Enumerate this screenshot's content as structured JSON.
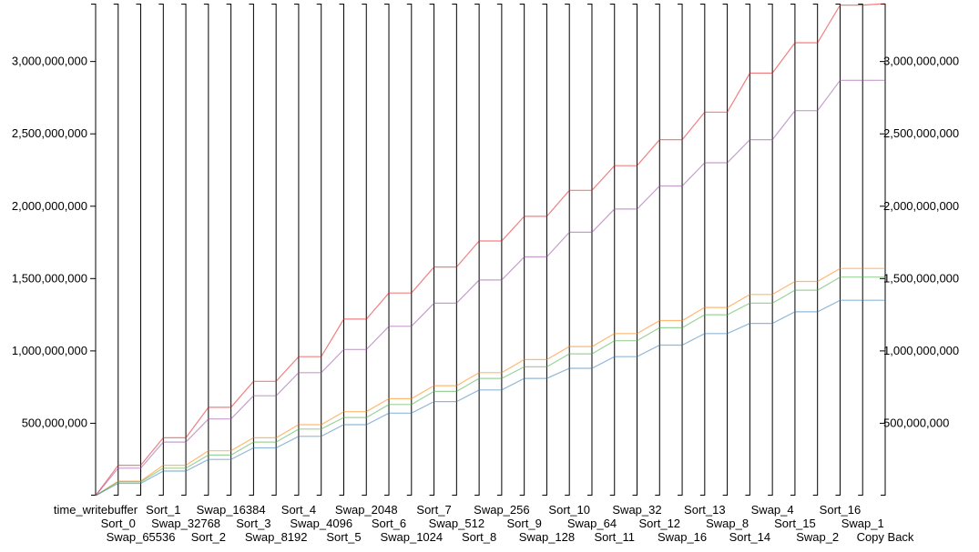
{
  "chart_data": {
    "type": "line",
    "chart_style": "parallel-coordinates",
    "title": "",
    "xlabel": "",
    "ylabel": "",
    "grid": false,
    "legend": "none",
    "ylim": [
      0,
      3400000000
    ],
    "yticks": [
      500000000,
      1000000000,
      1500000000,
      2000000000,
      2500000000,
      3000000000
    ],
    "ytick_labels": [
      "500,000,000",
      "1,000,000,000",
      "1,500,000,000",
      "2,000,000,000",
      "2,500,000,000",
      "3,000,000,000"
    ],
    "categories": [
      "time_writebuffer",
      "Sort_0",
      "Swap_65536",
      "Sort_1",
      "Swap_32768",
      "Sort_2",
      "Swap_16384",
      "Sort_3",
      "Swap_8192",
      "Sort_4",
      "Swap_4096",
      "Sort_5",
      "Swap_2048",
      "Sort_6",
      "Swap_1024",
      "Sort_7",
      "Swap_512",
      "Sort_8",
      "Swap_256",
      "Sort_9",
      "Swap_128",
      "Sort_10",
      "Swap_64",
      "Sort_11",
      "Swap_32",
      "Sort_12",
      "Swap_16",
      "Sort_13",
      "Swap_8",
      "Sort_14",
      "Swap_4",
      "Sort_15",
      "Swap_2",
      "Sort_16",
      "Swap_1",
      "Copy Back"
    ],
    "series": [
      {
        "color": "#e41a1c",
        "values": [
          0,
          210000000,
          210000000,
          400000000,
          400000000,
          610000000,
          610000000,
          790000000,
          790000000,
          960000000,
          960000000,
          1220000000,
          1220000000,
          1400000000,
          1400000000,
          1580000000,
          1580000000,
          1760000000,
          1760000000,
          1930000000,
          1930000000,
          2110000000,
          2110000000,
          2280000000,
          2280000000,
          2460000000,
          2460000000,
          2650000000,
          2650000000,
          2920000000,
          2920000000,
          3130000000,
          3130000000,
          3390000000,
          3390000000,
          3400000000
        ]
      },
      {
        "color": "#984ea3",
        "values": [
          0,
          190000000,
          190000000,
          370000000,
          370000000,
          530000000,
          530000000,
          690000000,
          690000000,
          850000000,
          850000000,
          1010000000,
          1010000000,
          1170000000,
          1170000000,
          1330000000,
          1330000000,
          1490000000,
          1490000000,
          1650000000,
          1650000000,
          1820000000,
          1820000000,
          1980000000,
          1980000000,
          2140000000,
          2140000000,
          2300000000,
          2300000000,
          2460000000,
          2460000000,
          2660000000,
          2660000000,
          2870000000,
          2870000000,
          2870000000
        ]
      },
      {
        "color": "#ff7f00",
        "values": [
          0,
          100000000,
          100000000,
          210000000,
          210000000,
          310000000,
          310000000,
          400000000,
          400000000,
          490000000,
          490000000,
          580000000,
          580000000,
          670000000,
          670000000,
          760000000,
          760000000,
          850000000,
          850000000,
          940000000,
          940000000,
          1030000000,
          1030000000,
          1120000000,
          1120000000,
          1210000000,
          1210000000,
          1300000000,
          1300000000,
          1390000000,
          1390000000,
          1480000000,
          1480000000,
          1570000000,
          1570000000,
          1570000000
        ]
      },
      {
        "color": "#4daf4a",
        "values": [
          0,
          95000000,
          95000000,
          190000000,
          190000000,
          280000000,
          280000000,
          370000000,
          370000000,
          460000000,
          460000000,
          540000000,
          540000000,
          630000000,
          630000000,
          720000000,
          720000000,
          810000000,
          810000000,
          890000000,
          890000000,
          980000000,
          980000000,
          1070000000,
          1070000000,
          1160000000,
          1160000000,
          1250000000,
          1250000000,
          1330000000,
          1330000000,
          1420000000,
          1420000000,
          1510000000,
          1510000000,
          1510000000
        ]
      },
      {
        "color": "#377eb8",
        "values": [
          0,
          85000000,
          85000000,
          170000000,
          170000000,
          250000000,
          250000000,
          330000000,
          330000000,
          410000000,
          410000000,
          490000000,
          490000000,
          570000000,
          570000000,
          650000000,
          650000000,
          730000000,
          730000000,
          810000000,
          810000000,
          880000000,
          880000000,
          960000000,
          960000000,
          1040000000,
          1040000000,
          1120000000,
          1120000000,
          1190000000,
          1190000000,
          1270000000,
          1270000000,
          1350000000,
          1350000000,
          1350000000
        ]
      }
    ]
  }
}
